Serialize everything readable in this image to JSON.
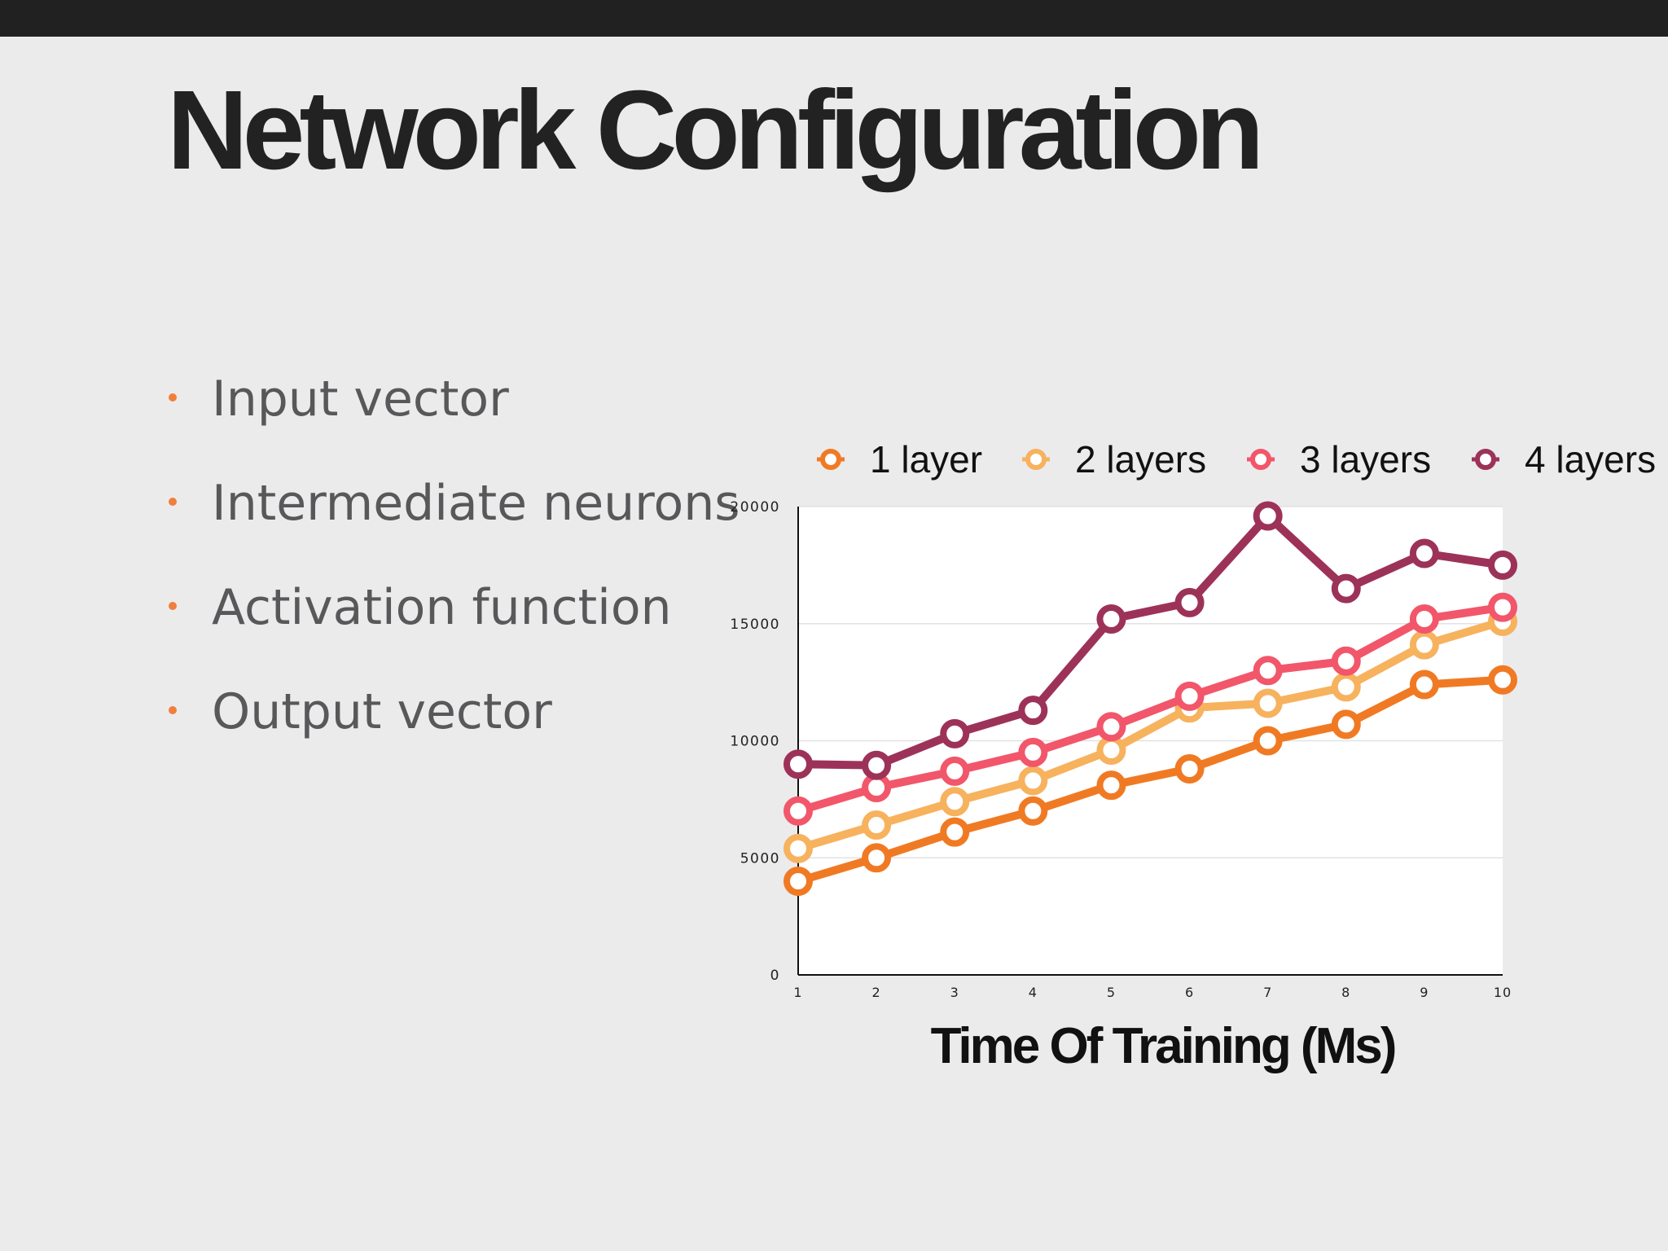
{
  "slide": {
    "title": "Network Configuration",
    "bullets": [
      "Input vector",
      "Intermediate neurons",
      "Activation function",
      "Output vector"
    ]
  },
  "colors": {
    "top_bar": "#212121",
    "background": "#ebebec",
    "bullet_marker": "#f07f3c",
    "series": [
      "#f07a23",
      "#f7b25e",
      "#f2566a",
      "#9d3259"
    ]
  },
  "chart_data": {
    "type": "line",
    "title": "",
    "xlabel": "Time Of Training (Ms)",
    "ylabel": "",
    "x": [
      1,
      2,
      3,
      4,
      5,
      6,
      7,
      8,
      9,
      10
    ],
    "ylim": [
      0,
      20000
    ],
    "yticks": [
      0,
      5000,
      10000,
      15000,
      20000
    ],
    "grid": true,
    "legend_position": "top",
    "series": [
      {
        "name": "1 layer",
        "values": [
          4000,
          5000,
          6100,
          7000,
          8100,
          8800,
          10000,
          10700,
          12400,
          12600
        ]
      },
      {
        "name": "2 layers",
        "values": [
          5400,
          6400,
          7400,
          8300,
          9600,
          11400,
          11600,
          12300,
          14100,
          15100
        ]
      },
      {
        "name": "3 layers",
        "values": [
          7000,
          8000,
          8700,
          9500,
          10600,
          11900,
          13000,
          13400,
          15200,
          15700
        ]
      },
      {
        "name": "4 layers",
        "values": [
          9000,
          8950,
          10300,
          11300,
          15200,
          15900,
          19600,
          16500,
          18000,
          17500
        ]
      }
    ]
  }
}
